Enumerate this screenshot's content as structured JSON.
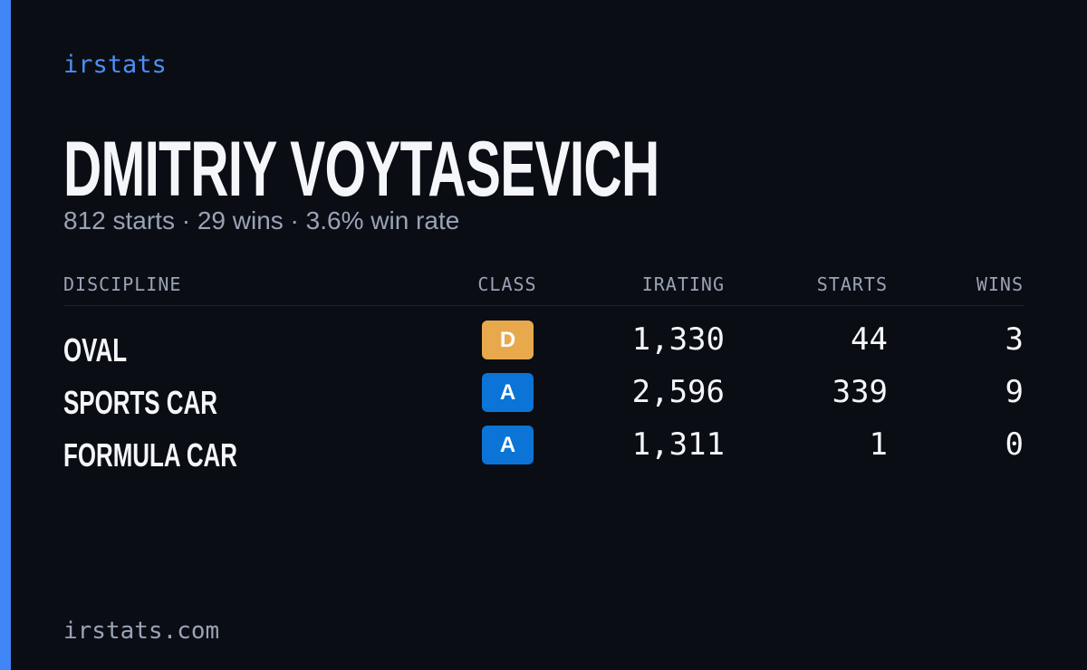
{
  "brand": "irstats",
  "header": {
    "name": "DMITRIY VOYTASEVICH",
    "summary": "812 starts · 29 wins · 3.6% win rate"
  },
  "table": {
    "columns": [
      "DISCIPLINE",
      "CLASS",
      "IRATING",
      "STARTS",
      "WINS"
    ],
    "rows": [
      [
        "OVAL",
        "D",
        "1,330",
        "44",
        "3"
      ],
      [
        "SPORTS CAR",
        "A",
        "2,596",
        "339",
        "9"
      ],
      [
        "FORMULA CAR",
        "A",
        "1,311",
        "1",
        "0"
      ]
    ],
    "badge_colors": [
      "#e8a94c",
      "#0b74d6",
      "#0b74d6"
    ]
  },
  "footer": "irstats.com"
}
